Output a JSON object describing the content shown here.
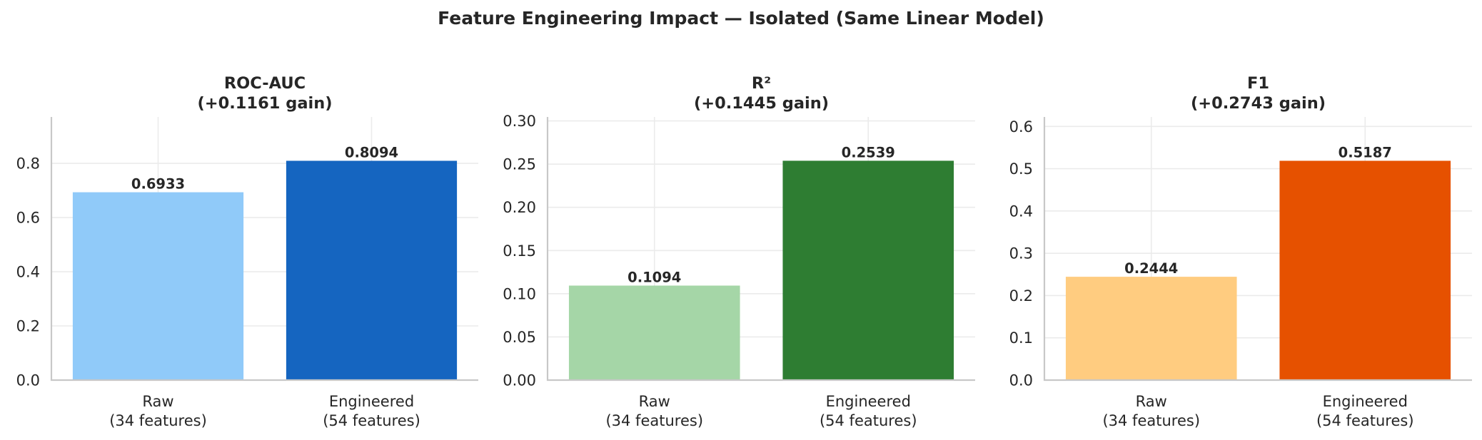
{
  "title": "Feature Engineering Impact — Isolated (Same Linear Model)",
  "chart_data": [
    {
      "type": "bar",
      "title": [
        "ROC-AUC",
        "(+0.1161 gain)"
      ],
      "categories": [
        [
          "Raw",
          "(34 features)"
        ],
        [
          "Engineered",
          "(54 features)"
        ]
      ],
      "values": [
        0.6933,
        0.8094
      ],
      "value_labels": [
        "0.6933",
        "0.8094"
      ],
      "colors": [
        "#90caf9",
        "#1565c0"
      ],
      "ylim": [
        0,
        0.9712
      ],
      "yticks": [
        0.0,
        0.2,
        0.4,
        0.6,
        0.8
      ],
      "ytick_labels": [
        "0.0",
        "0.2",
        "0.4",
        "0.6",
        "0.8"
      ],
      "grid": true
    },
    {
      "type": "bar",
      "title": [
        "R²",
        "(+0.1445 gain)"
      ],
      "categories": [
        [
          "Raw",
          "(34 features)"
        ],
        [
          "Engineered",
          "(54 features)"
        ]
      ],
      "values": [
        0.1094,
        0.2539
      ],
      "value_labels": [
        "0.1094",
        "0.2539"
      ],
      "colors": [
        "#a5d6a7",
        "#2e7d32"
      ],
      "ylim": [
        0,
        0.3046
      ],
      "yticks": [
        0.0,
        0.05,
        0.1,
        0.15,
        0.2,
        0.25,
        0.3
      ],
      "ytick_labels": [
        "0.00",
        "0.05",
        "0.10",
        "0.15",
        "0.20",
        "0.25",
        "0.30"
      ],
      "grid": true
    },
    {
      "type": "bar",
      "title": [
        "F1",
        "(+0.2743 gain)"
      ],
      "categories": [
        [
          "Raw",
          "(34 features)"
        ],
        [
          "Engineered",
          "(54 features)"
        ]
      ],
      "values": [
        0.2444,
        0.5187
      ],
      "value_labels": [
        "0.2444",
        "0.5187"
      ],
      "colors": [
        "#ffcc80",
        "#e65100"
      ],
      "ylim": [
        0,
        0.6224
      ],
      "yticks": [
        0.0,
        0.1,
        0.2,
        0.3,
        0.4,
        0.5,
        0.6
      ],
      "ytick_labels": [
        "0.0",
        "0.1",
        "0.2",
        "0.3",
        "0.4",
        "0.5",
        "0.6"
      ],
      "grid": true
    }
  ]
}
